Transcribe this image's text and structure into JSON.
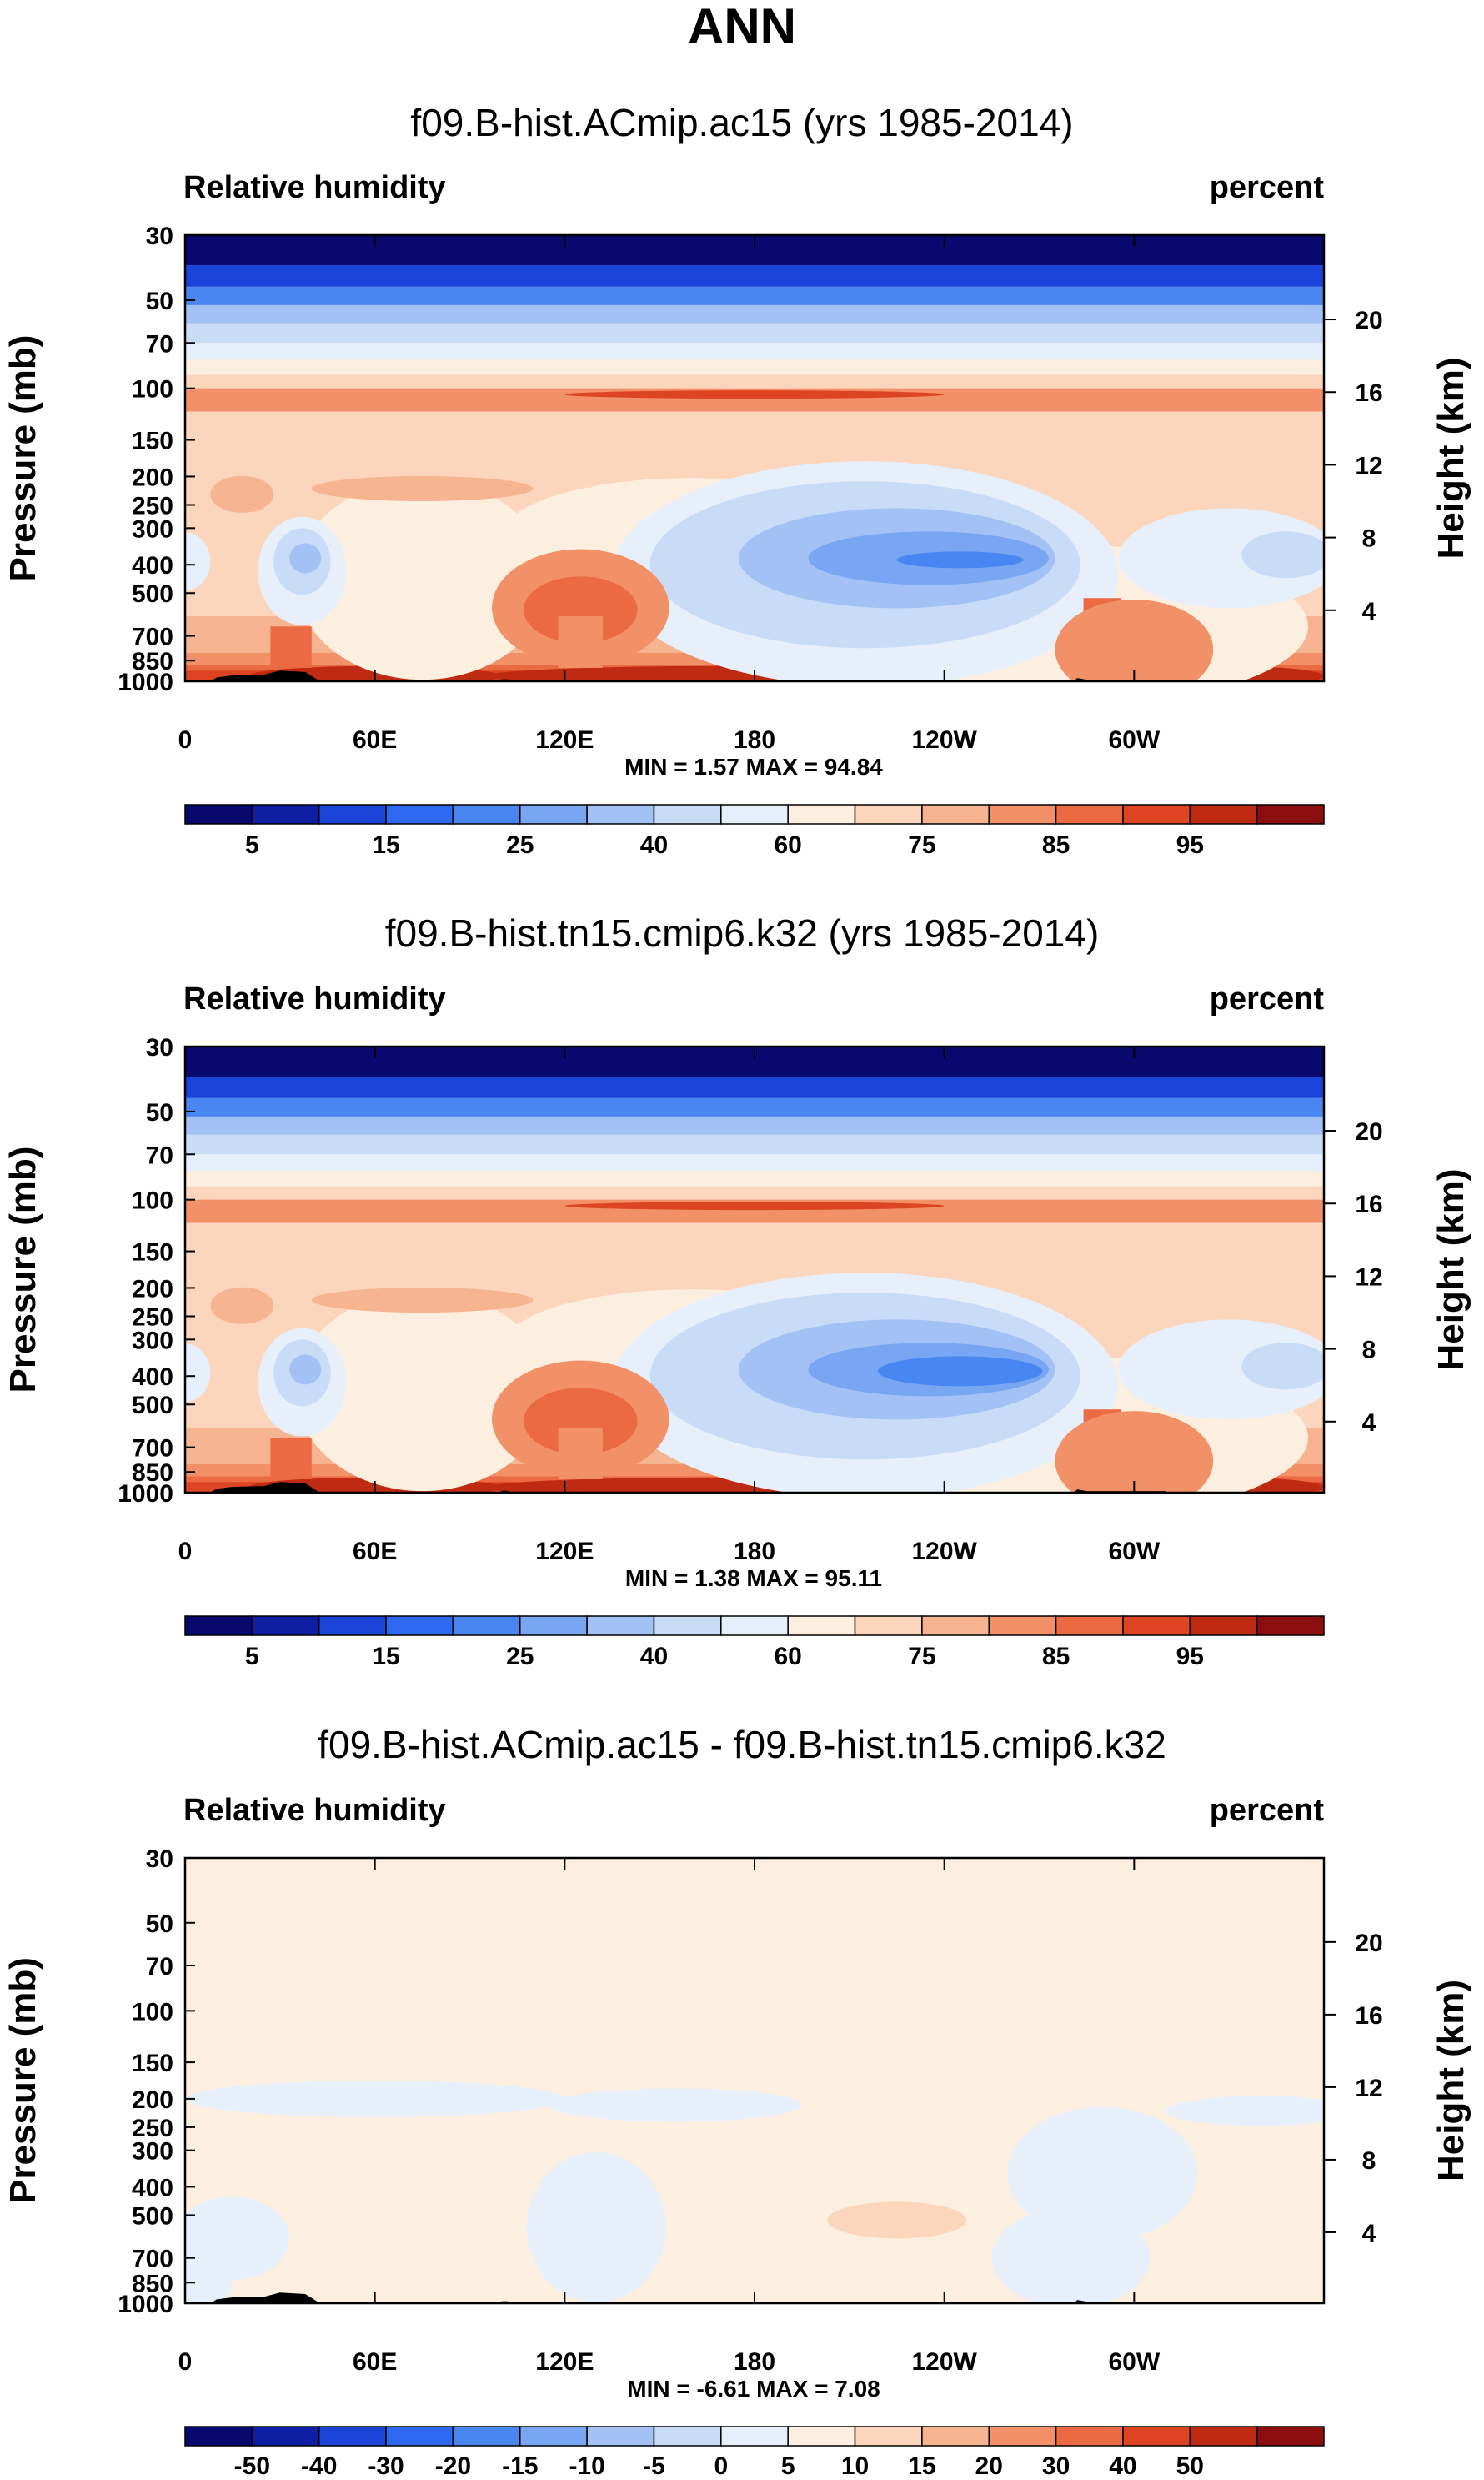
{
  "main_title": "ANN",
  "chart_data": [
    {
      "type": "contour",
      "title": "f09.B-hist.ACmip.ac15 (yrs 1985-2014)",
      "left_label": "Relative humidity",
      "right_label": "percent",
      "ylabel": "Pressure (mb)",
      "y2label": "Height (km)",
      "x_ticks": [
        "0",
        "60E",
        "120E",
        "180",
        "120W",
        "60W"
      ],
      "x_tick_lon": [
        0,
        60,
        120,
        180,
        240,
        300
      ],
      "xlim": [
        0,
        360
      ],
      "y_ticks": [
        30,
        50,
        70,
        100,
        150,
        200,
        250,
        300,
        400,
        500,
        700,
        850,
        1000
      ],
      "ylim": [
        1000,
        30
      ],
      "y2_ticks": [
        20,
        16,
        12,
        8,
        4
      ],
      "stats": "MIN =   1.57  MAX =  94.84",
      "levels": [
        "5",
        "10",
        "15",
        "20",
        "25",
        "30",
        "40",
        "50",
        "60",
        "70",
        "75",
        "80",
        "85",
        "90",
        "95"
      ],
      "level_labels": [
        "5",
        "15",
        "25",
        "40",
        "60",
        "75",
        "85",
        "95"
      ],
      "palette": [
        "#08086e",
        "#0d1fa3",
        "#1a44d8",
        "#2e67f0",
        "#4a86f2",
        "#78a6f2",
        "#a3c1f4",
        "#c8dcf7",
        "#e6effa",
        "#fdefe0",
        "#fbd6bd",
        "#f7b490",
        "#f29068",
        "#ec6a43",
        "#dd4522",
        "#bf2b12",
        "#8c0d0d"
      ]
    },
    {
      "type": "contour",
      "title": "f09.B-hist.tn15.cmip6.k32 (yrs 1985-2014)",
      "left_label": "Relative humidity",
      "right_label": "percent",
      "ylabel": "Pressure (mb)",
      "y2label": "Height (km)",
      "x_ticks": [
        "0",
        "60E",
        "120E",
        "180",
        "120W",
        "60W"
      ],
      "x_tick_lon": [
        0,
        60,
        120,
        180,
        240,
        300
      ],
      "xlim": [
        0,
        360
      ],
      "y_ticks": [
        30,
        50,
        70,
        100,
        150,
        200,
        250,
        300,
        400,
        500,
        700,
        850,
        1000
      ],
      "ylim": [
        1000,
        30
      ],
      "y2_ticks": [
        20,
        16,
        12,
        8,
        4
      ],
      "stats": "MIN =   1.38  MAX =  95.11",
      "levels": [
        "5",
        "10",
        "15",
        "20",
        "25",
        "30",
        "40",
        "50",
        "60",
        "70",
        "75",
        "80",
        "85",
        "90",
        "95"
      ],
      "level_labels": [
        "5",
        "15",
        "25",
        "40",
        "60",
        "75",
        "85",
        "95"
      ],
      "palette": [
        "#08086e",
        "#0d1fa3",
        "#1a44d8",
        "#2e67f0",
        "#4a86f2",
        "#78a6f2",
        "#a3c1f4",
        "#c8dcf7",
        "#e6effa",
        "#fdefe0",
        "#fbd6bd",
        "#f7b490",
        "#f29068",
        "#ec6a43",
        "#dd4522",
        "#bf2b12",
        "#8c0d0d"
      ]
    },
    {
      "type": "contour",
      "title": "f09.B-hist.ACmip.ac15 - f09.B-hist.tn15.cmip6.k32",
      "left_label": "Relative humidity",
      "right_label": "percent",
      "ylabel": "Pressure (mb)",
      "y2label": "Height (km)",
      "x_ticks": [
        "0",
        "60E",
        "120E",
        "180",
        "120W",
        "60W"
      ],
      "x_tick_lon": [
        0,
        60,
        120,
        180,
        240,
        300
      ],
      "xlim": [
        0,
        360
      ],
      "y_ticks": [
        30,
        50,
        70,
        100,
        150,
        200,
        250,
        300,
        400,
        500,
        700,
        850,
        1000
      ],
      "ylim": [
        1000,
        30
      ],
      "y2_ticks": [
        20,
        16,
        12,
        8,
        4
      ],
      "stats": "MIN =  -6.61  MAX =   7.08",
      "levels": [
        "-50",
        "-40",
        "-30",
        "-20",
        "-15",
        "-10",
        "-5",
        "0",
        "5",
        "10",
        "15",
        "20",
        "30",
        "40",
        "50"
      ],
      "level_labels": [
        "-50",
        "-40",
        "-30",
        "-20",
        "-15",
        "-10",
        "-5",
        "0",
        "5",
        "10",
        "15",
        "20",
        "30",
        "40",
        "50"
      ],
      "palette": [
        "#08086e",
        "#0d1fa3",
        "#1a44d8",
        "#2e67f0",
        "#4a86f2",
        "#78a6f2",
        "#a3c1f4",
        "#c8dcf7",
        "#e6effa",
        "#fdefe0",
        "#fbd6bd",
        "#f7b490",
        "#f29068",
        "#ec6a43",
        "#dd4522",
        "#bf2b12",
        "#8c0d0d"
      ]
    }
  ]
}
